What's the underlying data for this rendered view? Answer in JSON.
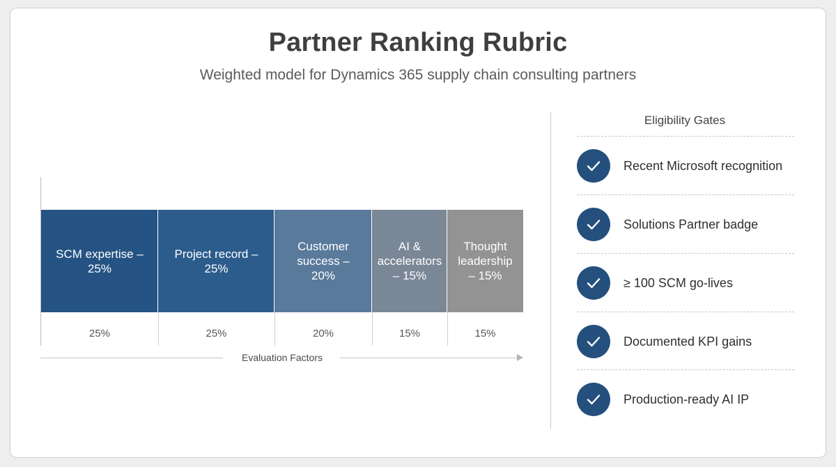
{
  "title": "Partner Ranking Rubric",
  "subtitle": "Weighted model for Dynamics 365 supply chain consulting partners",
  "chart_data": {
    "type": "bar",
    "layout": "stacked-horizontal-100",
    "xlabel": "Evaluation Factors",
    "categories": [
      "SCM expertise",
      "Project record",
      "Customer success",
      "AI & accelerators",
      "Thought leadership"
    ],
    "segment_labels": [
      "SCM expertise –\n25%",
      "Project record –\n25%",
      "Customer\nsuccess –\n20%",
      "AI &\naccelerators\n– 15%",
      "Thought\nleadership\n– 15%"
    ],
    "values": [
      25,
      25,
      20,
      15,
      15
    ],
    "value_labels": [
      "25%",
      "25%",
      "20%",
      "15%",
      "15%"
    ],
    "colors": [
      "#255383",
      "#2c5c8c",
      "#5a7a9c",
      "#7a8797",
      "#939393"
    ]
  },
  "gates": {
    "header": "Eligibility Gates",
    "items": [
      {
        "label": "Recent Microsoft recognition",
        "icon": "check-icon"
      },
      {
        "label": "Solutions Partner badge",
        "icon": "check-icon"
      },
      {
        "label": "≥ 100 SCM go-lives",
        "icon": "check-icon"
      },
      {
        "label": "Documented KPI gains",
        "icon": "check-icon"
      },
      {
        "label": "Production-ready AI IP",
        "icon": "check-icon"
      }
    ]
  }
}
